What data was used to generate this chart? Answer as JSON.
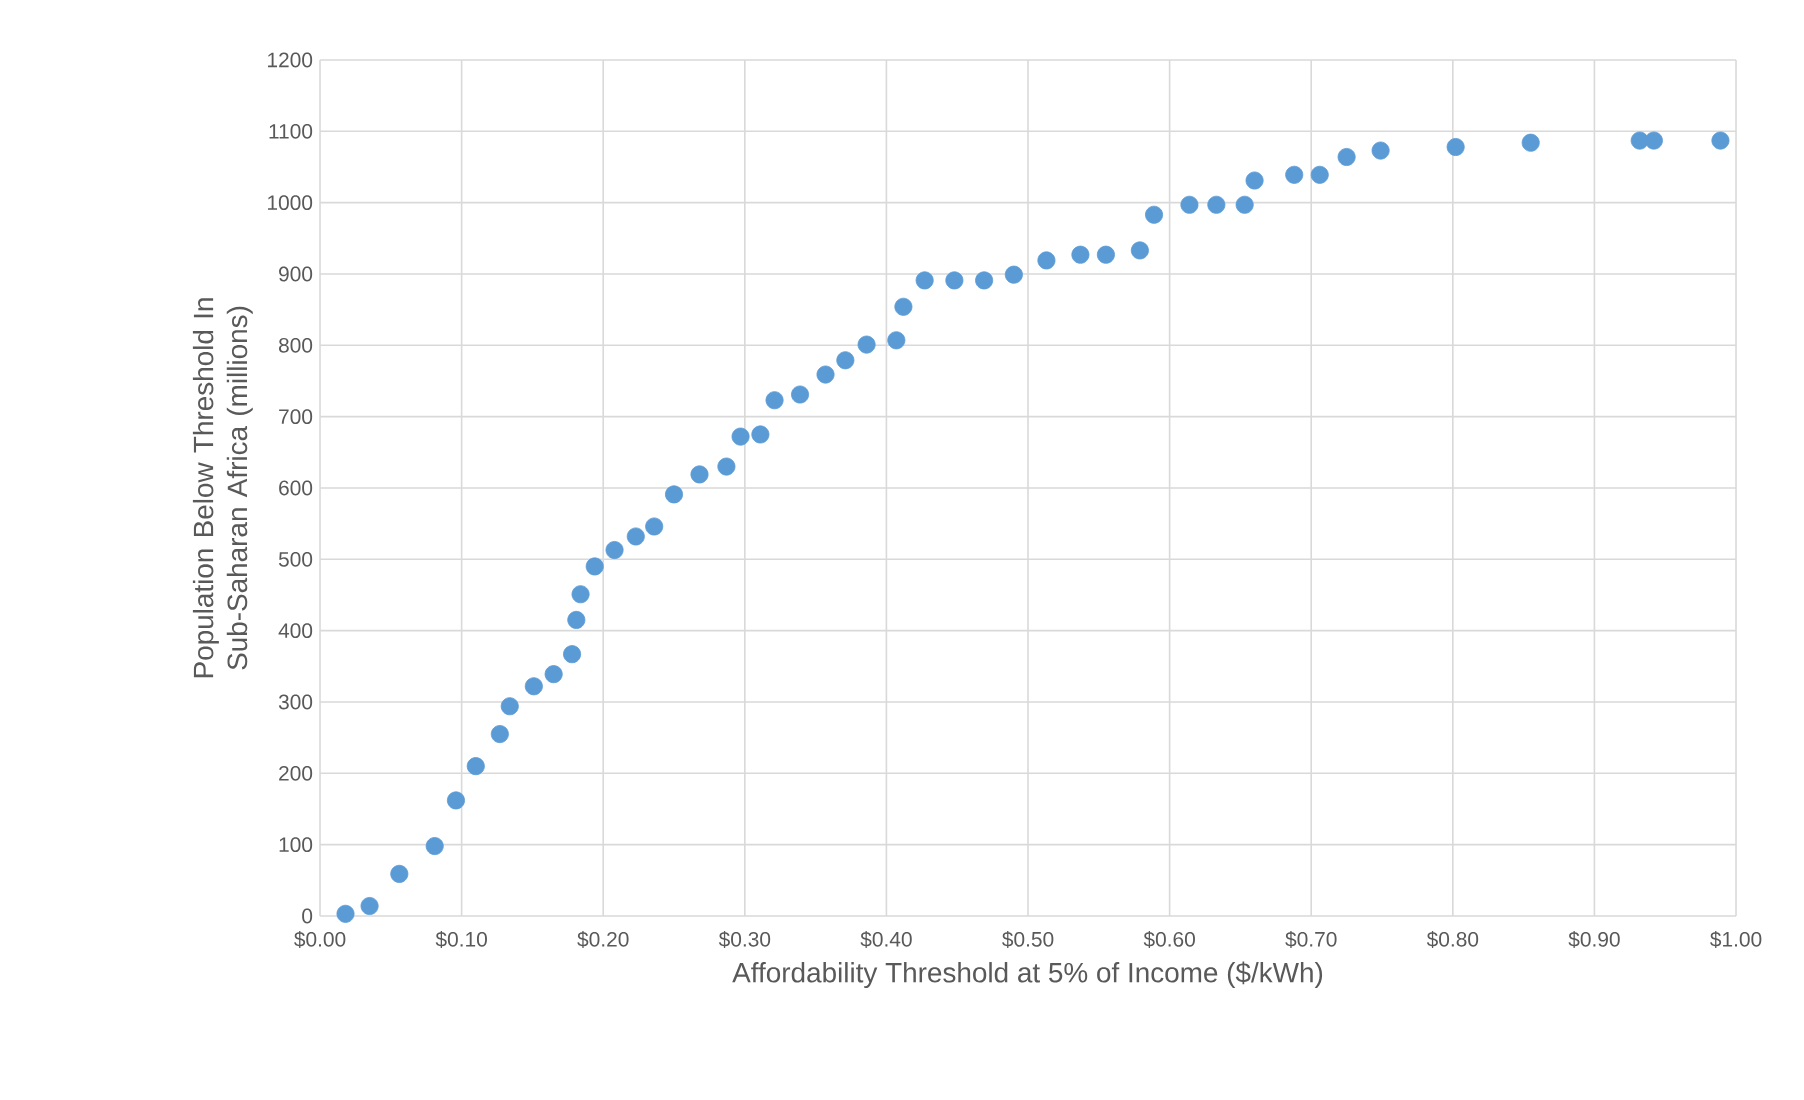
{
  "chart_data": {
    "type": "scatter",
    "xlabel": "Affordability Threshold at 5% of Income ($/kWh)",
    "ylabel": "Population Below Threshold In Sub-Saharan Africa (millions)",
    "x": [
      0.018,
      0.035,
      0.056,
      0.081,
      0.096,
      0.11,
      0.127,
      0.134,
      0.151,
      0.165,
      0.178,
      0.181,
      0.184,
      0.194,
      0.208,
      0.223,
      0.236,
      0.25,
      0.268,
      0.287,
      0.297,
      0.311,
      0.321,
      0.339,
      0.357,
      0.371,
      0.386,
      0.407,
      0.412,
      0.427,
      0.448,
      0.469,
      0.49,
      0.513,
      0.537,
      0.555,
      0.579,
      0.589,
      0.614,
      0.633,
      0.653,
      0.66,
      0.688,
      0.706,
      0.725,
      0.749,
      0.802,
      0.855,
      0.932,
      0.942,
      0.989
    ],
    "values": [
      3,
      14,
      59,
      98,
      162,
      210,
      255,
      294,
      322,
      339,
      367,
      415,
      451,
      490,
      513,
      532,
      546,
      591,
      619,
      630,
      672,
      675,
      723,
      731,
      759,
      779,
      801,
      807,
      854,
      891,
      891,
      891,
      899,
      919,
      927,
      927,
      933,
      983,
      997,
      997,
      997,
      1031,
      1039,
      1039,
      1064,
      1073,
      1078,
      1084,
      1087,
      1087,
      1087
    ],
    "color": "#5b9bd5",
    "marker": "circle",
    "grid": true,
    "xlim": [
      0,
      1
    ],
    "xticks": [
      {
        "value": 0,
        "label": "$0.00"
      },
      {
        "value": 0.1,
        "label": "$0.10"
      },
      {
        "value": 0.2,
        "label": "$0.20"
      },
      {
        "value": 0.3,
        "label": "$0.30"
      },
      {
        "value": 0.4,
        "label": "$0.40"
      },
      {
        "value": 0.5,
        "label": "$0.50"
      },
      {
        "value": 0.6,
        "label": "$0.60"
      },
      {
        "value": 0.7,
        "label": "$0.70"
      },
      {
        "value": 0.8,
        "label": "$0.80"
      },
      {
        "value": 0.9,
        "label": "$0.90"
      },
      {
        "value": 1.0,
        "label": "$1.00"
      }
    ],
    "ylim": [
      0,
      1200
    ],
    "yticks": [
      0,
      100,
      200,
      300,
      400,
      500,
      600,
      700,
      800,
      900,
      1000,
      1100,
      1200
    ]
  }
}
